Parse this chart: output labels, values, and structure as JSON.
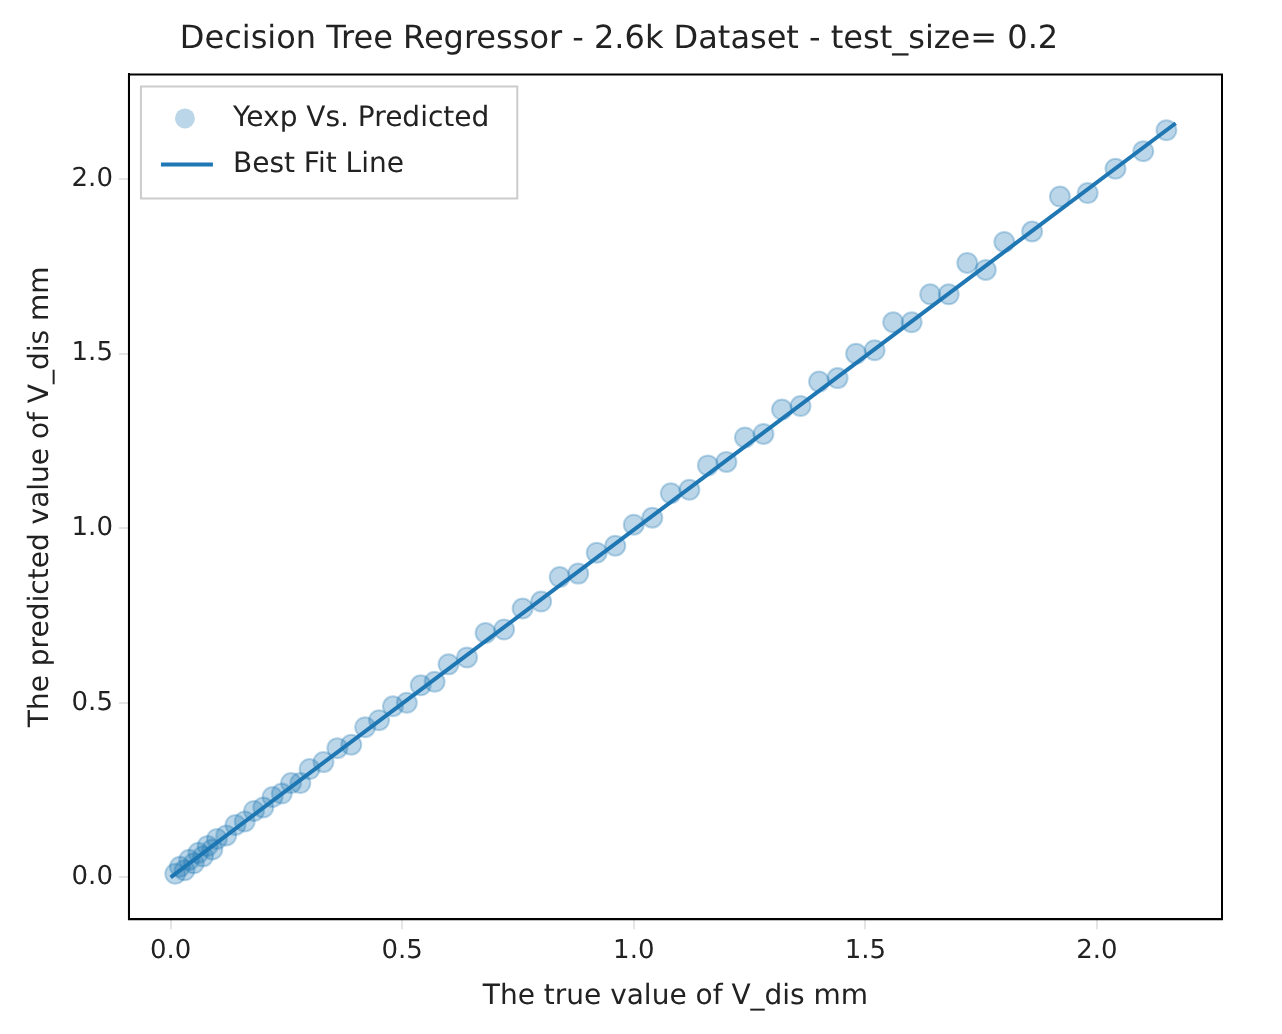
{
  "chart_data": {
    "type": "scatter",
    "title": "Decision Tree Regressor - 2.6k Dataset - test_size= 0.2",
    "xlabel": "The true value of V_dis mm",
    "ylabel": "The predicted value of V_dis mm",
    "xlim": [
      -0.09,
      2.27
    ],
    "ylim": [
      -0.12,
      2.3
    ],
    "xticks": [
      {
        "value": 0,
        "label": "0.0"
      },
      0.5,
      {
        "value": 1,
        "label": "1.0"
      },
      1.5,
      {
        "value": 2,
        "label": "2.0"
      }
    ],
    "yticks": [
      {
        "value": 0,
        "label": "0.0"
      },
      0.5,
      {
        "value": 1,
        "label": "1.0"
      },
      1.5,
      {
        "value": 2,
        "label": "2.0"
      }
    ],
    "legend": "top left",
    "series": [
      {
        "name": "Yexp Vs. Predicted",
        "type": "scatter",
        "marker": "circle",
        "color": "#1f77b4",
        "x": [
          0.01,
          0.02,
          0.03,
          0.04,
          0.05,
          0.06,
          0.07,
          0.08,
          0.09,
          0.1,
          0.12,
          0.14,
          0.16,
          0.18,
          0.2,
          0.22,
          0.24,
          0.26,
          0.28,
          0.3,
          0.33,
          0.36,
          0.39,
          0.42,
          0.45,
          0.48,
          0.51,
          0.54,
          0.57,
          0.6,
          0.64,
          0.68,
          0.72,
          0.76,
          0.8,
          0.84,
          0.88,
          0.92,
          0.96,
          1.0,
          1.04,
          1.08,
          1.12,
          1.16,
          1.2,
          1.24,
          1.28,
          1.32,
          1.36,
          1.4,
          1.44,
          1.48,
          1.52,
          1.56,
          1.6,
          1.64,
          1.68,
          1.72,
          1.76,
          1.8,
          1.86,
          1.92,
          1.98,
          2.04,
          2.1,
          2.15
        ],
        "values": [
          0.01,
          0.03,
          0.02,
          0.05,
          0.04,
          0.07,
          0.06,
          0.09,
          0.08,
          0.11,
          0.12,
          0.15,
          0.16,
          0.19,
          0.2,
          0.23,
          0.24,
          0.27,
          0.27,
          0.31,
          0.33,
          0.37,
          0.38,
          0.43,
          0.45,
          0.49,
          0.5,
          0.55,
          0.56,
          0.61,
          0.63,
          0.7,
          0.71,
          0.77,
          0.79,
          0.86,
          0.87,
          0.93,
          0.95,
          1.01,
          1.03,
          1.1,
          1.11,
          1.18,
          1.19,
          1.26,
          1.27,
          1.34,
          1.35,
          1.42,
          1.43,
          1.5,
          1.51,
          1.59,
          1.59,
          1.67,
          1.67,
          1.76,
          1.74,
          1.82,
          1.85,
          1.95,
          1.96,
          2.03,
          2.08,
          2.14
        ]
      },
      {
        "name": "Best Fit Line",
        "type": "line",
        "marker": "none",
        "color": "#1f77b4",
        "x": [
          0.0,
          2.17
        ],
        "values": [
          0.0,
          2.16
        ]
      }
    ]
  }
}
